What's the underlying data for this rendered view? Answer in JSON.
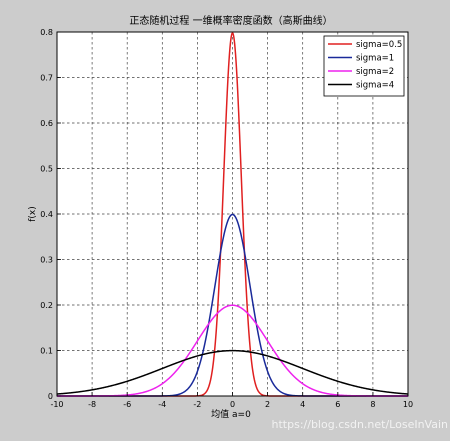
{
  "chart_data": {
    "type": "line",
    "title": "正态随机过程 一维概率密度函数（高斯曲线）",
    "xlabel": "均值 a=0",
    "ylabel": "f(x)",
    "xlim": [
      -10,
      10
    ],
    "ylim": [
      0,
      0.8
    ],
    "xticks": [
      -10,
      -8,
      -6,
      -4,
      -2,
      0,
      2,
      4,
      6,
      8,
      10
    ],
    "yticks": [
      0,
      0.1,
      0.2,
      0.3,
      0.4,
      0.5,
      0.6,
      0.7,
      0.8
    ],
    "grid": true,
    "legend_position": "top-right",
    "mean": 0,
    "series": [
      {
        "name": "sigma=0.5",
        "sigma": 0.5,
        "color": "#e02020"
      },
      {
        "name": "sigma=1",
        "sigma": 1,
        "color": "#1a2a9a"
      },
      {
        "name": "sigma=2",
        "sigma": 2,
        "color": "#ee22ee"
      },
      {
        "name": "sigma=4",
        "sigma": 4,
        "color": "#000000"
      }
    ]
  },
  "watermark": "https://blog.csdn.net/LoseInVain"
}
